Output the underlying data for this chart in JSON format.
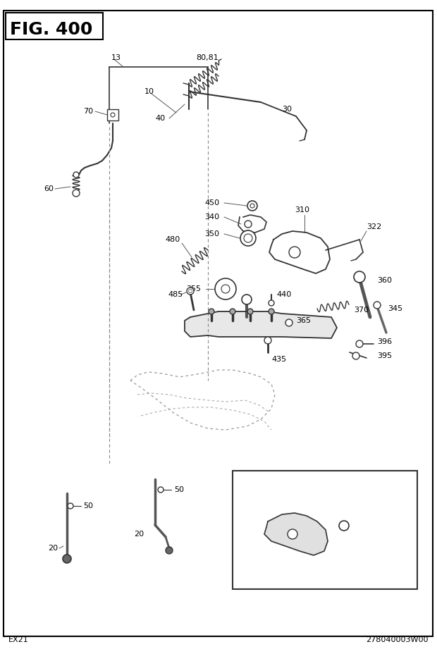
{
  "title": "FIG. 400",
  "fig_width": 6.2,
  "fig_height": 9.21,
  "dpi": 100,
  "bg_color": "#ffffff",
  "bottom_left": "EX21",
  "bottom_right": "278040003W00"
}
